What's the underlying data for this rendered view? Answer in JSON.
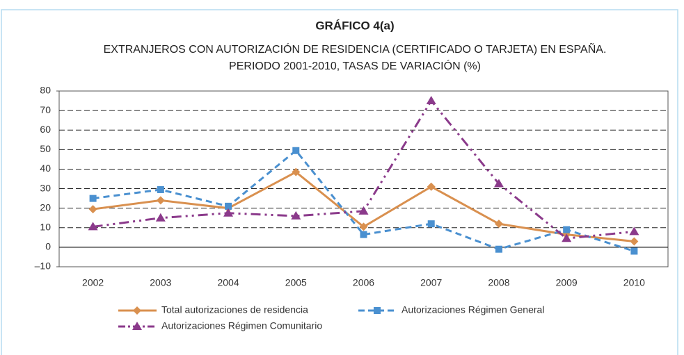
{
  "chart_data": {
    "type": "line",
    "title": "GRÁFICO 4(a)",
    "subtitle": [
      "EXTRANJEROS CON AUTORIZACIÓN DE RESIDENCIA (CERTIFICADO O TARJETA) EN ESPAÑA.",
      "PERIODO 2001-2010, TASAS DE VARIACIÓN (%)"
    ],
    "categories": [
      "2002",
      "2003",
      "2004",
      "2005",
      "2006",
      "2007",
      "2008",
      "2009",
      "2010"
    ],
    "series": [
      {
        "name": "Total autorizaciones de residencia",
        "color": "#d9904f",
        "values": [
          19.5,
          24,
          20,
          38.5,
          10.5,
          31,
          12,
          6.5,
          3
        ]
      },
      {
        "name": "Autorizaciones Régimen General",
        "color": "#4a90d0",
        "values": [
          25,
          29.5,
          21,
          49.5,
          6.5,
          12,
          -1,
          9,
          -2
        ]
      },
      {
        "name": "Autorizaciones Régimen Comunitario",
        "color": "#8b3a8b",
        "values": [
          10.5,
          15,
          17.5,
          16,
          18.5,
          75,
          32.5,
          4.5,
          8
        ]
      }
    ],
    "ylim": [
      -10,
      80
    ],
    "yticks": [
      {
        "value": -10,
        "label": "–10"
      },
      0,
      10,
      20,
      30,
      40,
      50,
      60,
      70,
      80
    ],
    "grid": true
  }
}
